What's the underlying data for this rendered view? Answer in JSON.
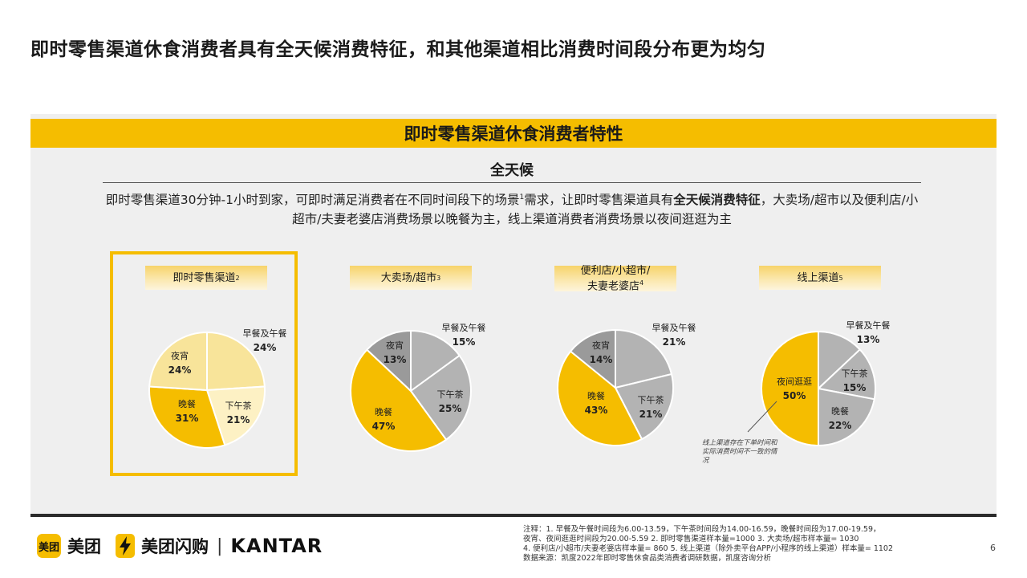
{
  "page_title": "即时零售渠道休食消费者具有全天候消费特征，和其他渠道相比消费时间段分布更为均匀",
  "banner": "即时零售渠道休食消费者特性",
  "section_title": "全天候",
  "description": {
    "part1": "即时零售渠道30分钟-1小时到家，可即时满足消费者在不同时间段下的场景",
    "sup": "1",
    "part2": "需求，让即时零售渠道具有",
    "bold": "全天候消费特征",
    "part3": "，大卖场/超市以及便利店/小超市/夫妻老婆店消费场景以晚餐为主，线上渠道消费者消费场景以夜间逛逛为主"
  },
  "colors": {
    "accent": "#f5bd00",
    "highlight_light": "#f8e49a",
    "highlight_pale": "#fdf1c4",
    "gray_mid": "#b3b3b3",
    "gray_dark": "#9a9a9a"
  },
  "chart_data": [
    {
      "type": "pie",
      "title": "即时零售渠道",
      "title_sup": "2",
      "highlighted": true,
      "slices": [
        {
          "label": "早餐及午餐",
          "value": 24,
          "display": "24%",
          "color": "#f8e49a"
        },
        {
          "label": "下午茶",
          "value": 21,
          "display": "21%",
          "color": "#fdf1c4"
        },
        {
          "label": "晚餐",
          "value": 31,
          "display": "31%",
          "color": "#f5bd00"
        },
        {
          "label": "夜宵",
          "value": 24,
          "display": "24%",
          "color": "#f8e49a"
        }
      ]
    },
    {
      "type": "pie",
      "title": "大卖场/超市",
      "title_sup": "3",
      "slices": [
        {
          "label": "早餐及午餐",
          "value": 15,
          "display": "15%",
          "color": "#b3b3b3"
        },
        {
          "label": "下午茶",
          "value": 25,
          "display": "25%",
          "color": "#b3b3b3"
        },
        {
          "label": "晚餐",
          "value": 47,
          "display": "47%",
          "color": "#f5bd00"
        },
        {
          "label": "夜宵",
          "value": 13,
          "display": "13%",
          "color": "#9a9a9a"
        }
      ]
    },
    {
      "type": "pie",
      "title": "便利店/小超市/夫妻老婆店",
      "title_line1": "便利店/小超市/",
      "title_line2": "夫妻老婆店",
      "title_sup": "4",
      "slices": [
        {
          "label": "早餐及午餐",
          "value": 21,
          "display": "21%",
          "color": "#b3b3b3"
        },
        {
          "label": "下午茶",
          "value": 21,
          "display": "21%",
          "color": "#b3b3b3"
        },
        {
          "label": "晚餐",
          "value": 43,
          "display": "43%",
          "color": "#f5bd00"
        },
        {
          "label": "夜宵",
          "value": 14,
          "display": "14%",
          "color": "#9a9a9a"
        }
      ]
    },
    {
      "type": "pie",
      "title": "线上渠道",
      "title_sup": "5",
      "slices": [
        {
          "label": "早餐及午餐",
          "value": 13,
          "display": "13%",
          "color": "#b3b3b3"
        },
        {
          "label": "下午茶",
          "value": 15,
          "display": "15%",
          "color": "#b3b3b3"
        },
        {
          "label": "晚餐",
          "value": 22,
          "display": "22%",
          "color": "#b3b3b3"
        },
        {
          "label": "夜间逛逛",
          "value": 50,
          "display": "50%",
          "color": "#f5bd00"
        }
      ],
      "annotation": "线上渠道存在下单时间和实际消费时间不一致的情况"
    }
  ],
  "logos": {
    "meituan_badge": "美团",
    "meituan": "美团",
    "shangou": "美团闪购",
    "separator": "|",
    "kantar": "KANTAR",
    "bolt_icon": "lightning-bolt-icon"
  },
  "footnotes": [
    "注释：1. 早餐及午餐时间段为6.00-13.59，下午茶时间段为14.00-16.59，晚餐时间段为17.00-19.59，",
    "夜宵、夜间逛逛时间段为20.00-5.59  2. 即时零售渠道样本量=1000  3. 大卖场/超市样本量= 1030",
    "4. 便利店/小超市/夫妻老婆店样本量= 860  5. 线上渠道（除外卖平台APP/小程序的线上渠道）样本量= 1102",
    "数据来源：凯度2022年即时零售休食品类消费者调研数据，凯度咨询分析"
  ],
  "page_number": "6"
}
